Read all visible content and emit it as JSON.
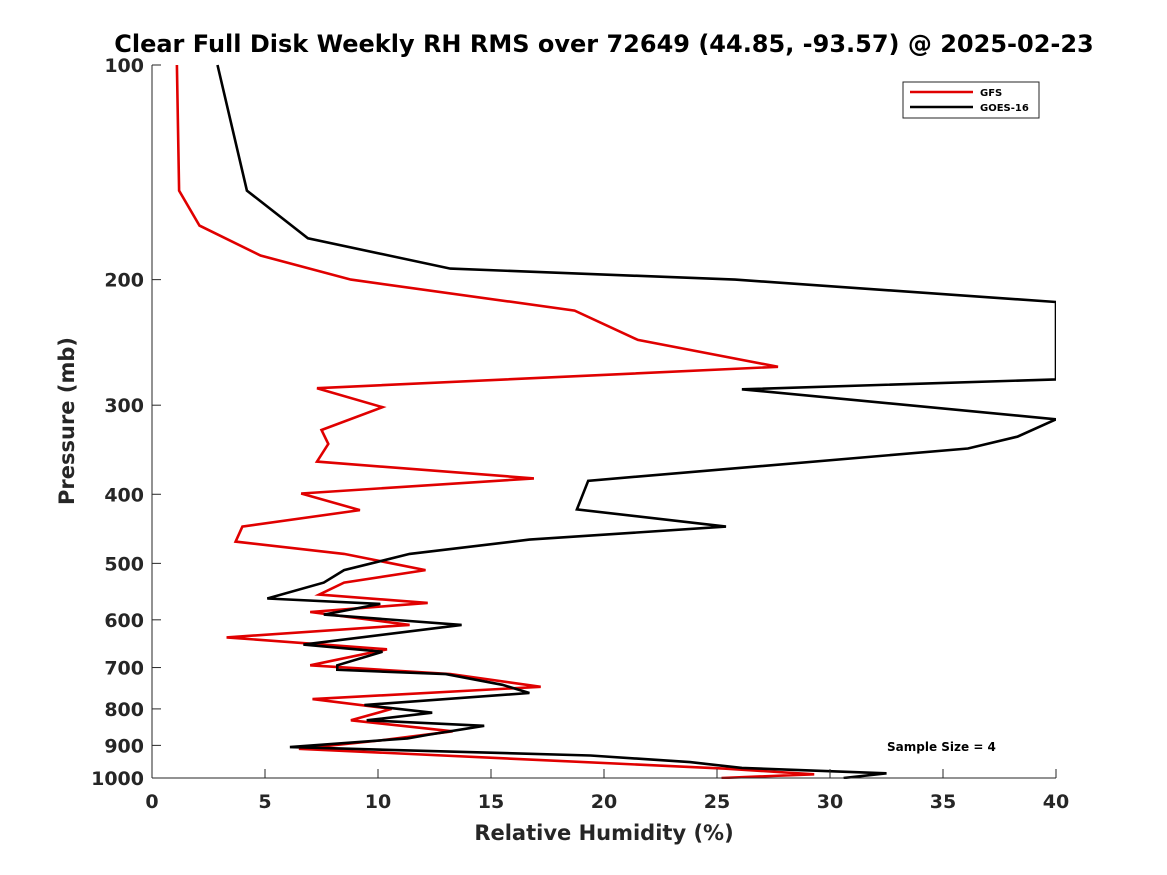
{
  "chart_data": {
    "type": "line",
    "title": "Clear Full Disk Weekly RH RMS over 72649 (44.85, -93.57) @ 2025-02-23",
    "xlabel": "Relative Humidity (%)",
    "ylabel": "Pressure (mb)",
    "xlim": [
      0,
      40
    ],
    "ylim": [
      1000,
      100
    ],
    "yscale": "log",
    "xticks": [
      0,
      5,
      10,
      15,
      20,
      25,
      30,
      35,
      40
    ],
    "yticks": [
      100,
      200,
      300,
      400,
      500,
      600,
      700,
      800,
      900,
      1000
    ],
    "grid": false,
    "legend_position": "top-right",
    "annotation": "Sample Size = 4",
    "series": [
      {
        "name": "GFS",
        "color": "#e00000",
        "points": [
          [
            1.1,
            100
          ],
          [
            1.2,
            150
          ],
          [
            2.1,
            168
          ],
          [
            4.8,
            185
          ],
          [
            8.8,
            200
          ],
          [
            18.7,
            221
          ],
          [
            21.5,
            243
          ],
          [
            27.7,
            265
          ],
          [
            7.3,
            284
          ],
          [
            10.2,
            302
          ],
          [
            7.5,
            325
          ],
          [
            7.8,
            340
          ],
          [
            7.3,
            360
          ],
          [
            16.9,
            380
          ],
          [
            6.6,
            399
          ],
          [
            9.2,
            421
          ],
          [
            4.0,
            444
          ],
          [
            3.7,
            466
          ],
          [
            8.5,
            485
          ],
          [
            12.1,
            511
          ],
          [
            8.5,
            532
          ],
          [
            7.4,
            553
          ],
          [
            12.2,
            568
          ],
          [
            7.0,
            585
          ],
          [
            11.4,
            610
          ],
          [
            3.3,
            635
          ],
          [
            10.4,
            660
          ],
          [
            7.0,
            695
          ],
          [
            13.2,
            715
          ],
          [
            17.2,
            745
          ],
          [
            7.1,
            775
          ],
          [
            10.6,
            800
          ],
          [
            8.8,
            830
          ],
          [
            13.3,
            860
          ],
          [
            10.2,
            885
          ],
          [
            6.5,
            910
          ],
          [
            25.3,
            970
          ],
          [
            29.3,
            988
          ],
          [
            25.2,
            1000
          ]
        ]
      },
      {
        "name": "GOES-16",
        "color": "#000000",
        "points": [
          [
            2.9,
            100
          ],
          [
            4.2,
            150
          ],
          [
            6.9,
            175
          ],
          [
            13.2,
            193
          ],
          [
            25.8,
            200
          ],
          [
            40.0,
            215
          ],
          [
            40.0,
            276
          ],
          [
            26.1,
            285
          ],
          [
            40.0,
            314
          ],
          [
            38.3,
            332
          ],
          [
            36.1,
            345
          ],
          [
            19.3,
            383
          ],
          [
            18.8,
            420
          ],
          [
            25.4,
            444
          ],
          [
            16.7,
            463
          ],
          [
            11.4,
            485
          ],
          [
            8.5,
            511
          ],
          [
            7.6,
            532
          ],
          [
            5.1,
            560
          ],
          [
            10.1,
            570
          ],
          [
            7.6,
            590
          ],
          [
            13.7,
            610
          ],
          [
            6.7,
            650
          ],
          [
            10.2,
            665
          ],
          [
            8.2,
            695
          ],
          [
            8.2,
            705
          ],
          [
            13.0,
            715
          ],
          [
            15.5,
            740
          ],
          [
            16.7,
            760
          ],
          [
            9.4,
            790
          ],
          [
            12.4,
            810
          ],
          [
            9.5,
            830
          ],
          [
            14.7,
            845
          ],
          [
            12.2,
            870
          ],
          [
            11.3,
            880
          ],
          [
            6.1,
            905
          ],
          [
            19.4,
            930
          ],
          [
            23.8,
            950
          ],
          [
            26.1,
            968
          ],
          [
            32.5,
            985
          ],
          [
            30.6,
            1000
          ]
        ]
      }
    ]
  }
}
